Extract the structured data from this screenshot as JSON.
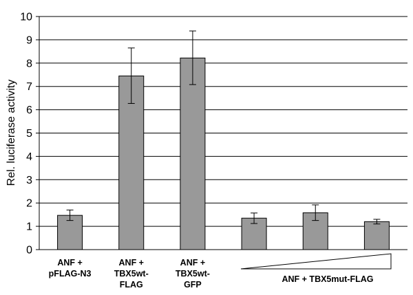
{
  "chart_data": {
    "type": "bar",
    "ylabel": "Rel. luciferase activity",
    "ylim": [
      0,
      10
    ],
    "yticks": [
      "0",
      "1",
      "2",
      "3",
      "4",
      "5",
      "6",
      "7",
      "8",
      "9",
      "10"
    ],
    "grid": true,
    "bars": [
      {
        "value": 1.47,
        "err_low": 1.25,
        "err_high": 1.7
      },
      {
        "value": 7.45,
        "err_low": 6.27,
        "err_high": 8.65
      },
      {
        "value": 8.22,
        "err_low": 7.08,
        "err_high": 9.38
      },
      {
        "value": 1.35,
        "err_low": 1.12,
        "err_high": 1.57
      },
      {
        "value": 1.58,
        "err_low": 1.25,
        "err_high": 1.92
      },
      {
        "value": 1.2,
        "err_low": 1.1,
        "err_high": 1.3
      }
    ],
    "category_labels": [
      {
        "lines": [
          "ANF +",
          "pFLAG-N3"
        ]
      },
      {
        "lines": [
          "ANF +",
          "TBX5wt-",
          "FLAG"
        ]
      },
      {
        "lines": [
          "ANF +",
          "TBX5wt-",
          "GFP"
        ]
      }
    ],
    "group_label": "ANF + TBX5mut-FLAG",
    "colors": {
      "bar": "#999999",
      "bar_stroke": "#000000",
      "grid": "#000000",
      "axis": "#000000"
    }
  }
}
